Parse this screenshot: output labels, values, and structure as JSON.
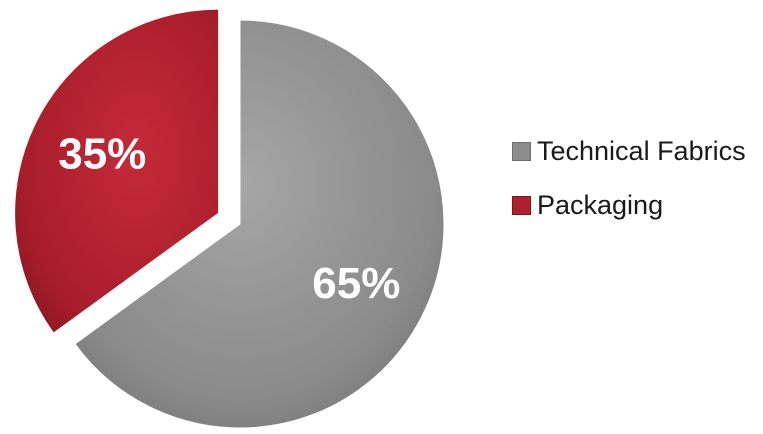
{
  "chart_data": {
    "type": "pie",
    "title": "",
    "slices": [
      {
        "label": "Technical Fabrics",
        "value": 65,
        "display": "65%",
        "color": "#8c8c8c"
      },
      {
        "label": "Packaging",
        "value": 35,
        "display": "35%",
        "color": "#b01f2e"
      }
    ],
    "exploded_slice": "Packaging",
    "legend_position": "right"
  }
}
